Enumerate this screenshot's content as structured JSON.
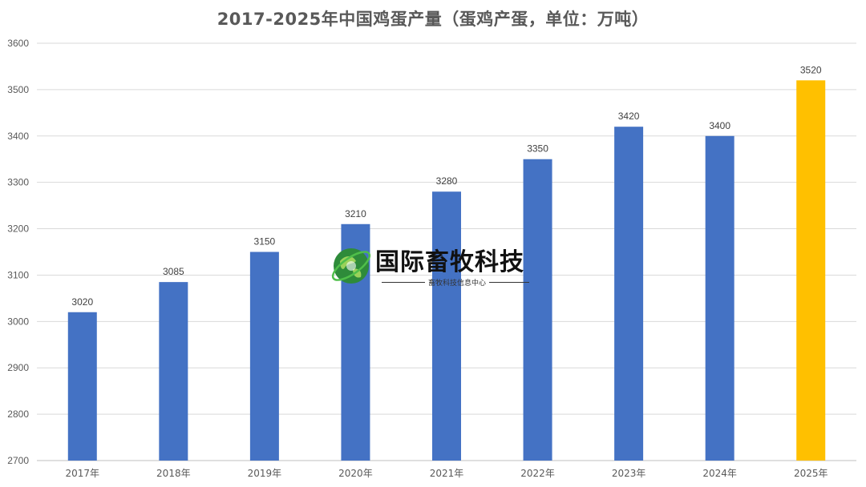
{
  "chart_data": {
    "type": "bar",
    "title": "2017-2025年中国鸡蛋产量（蛋鸡产蛋，单位：万吨）",
    "categories": [
      "2017年",
      "2018年",
      "2019年",
      "2020年",
      "2021年",
      "2022年",
      "2023年",
      "2024年",
      "2025年"
    ],
    "values": [
      3020,
      3085,
      3150,
      3210,
      3280,
      3350,
      3420,
      3400,
      3520
    ],
    "data_labels": [
      "3020",
      "3085",
      "3150",
      "3210",
      "3280",
      "3350",
      "3420",
      "3400",
      "3520"
    ],
    "ylim": [
      2700,
      3600
    ],
    "yticks": [
      2700,
      2800,
      2900,
      3000,
      3100,
      3200,
      3300,
      3400,
      3500,
      3600
    ],
    "ytick_labels": [
      "2700",
      "2800",
      "2900",
      "3000",
      "3100",
      "3200",
      "3300",
      "3400",
      "3500",
      "3600"
    ],
    "xlabel": "",
    "ylabel": "",
    "grid": true,
    "legend": "none",
    "colors": {
      "bar": "#4472C4",
      "highlight_bar": "#FFC000",
      "highlight_index": 8,
      "grid": "#d9d9d9",
      "text": "#595959"
    }
  },
  "watermark": {
    "brand": "国际畜牧科技",
    "subtitle": "畜牧科技信息中心",
    "icon": "globe-logo-icon"
  }
}
